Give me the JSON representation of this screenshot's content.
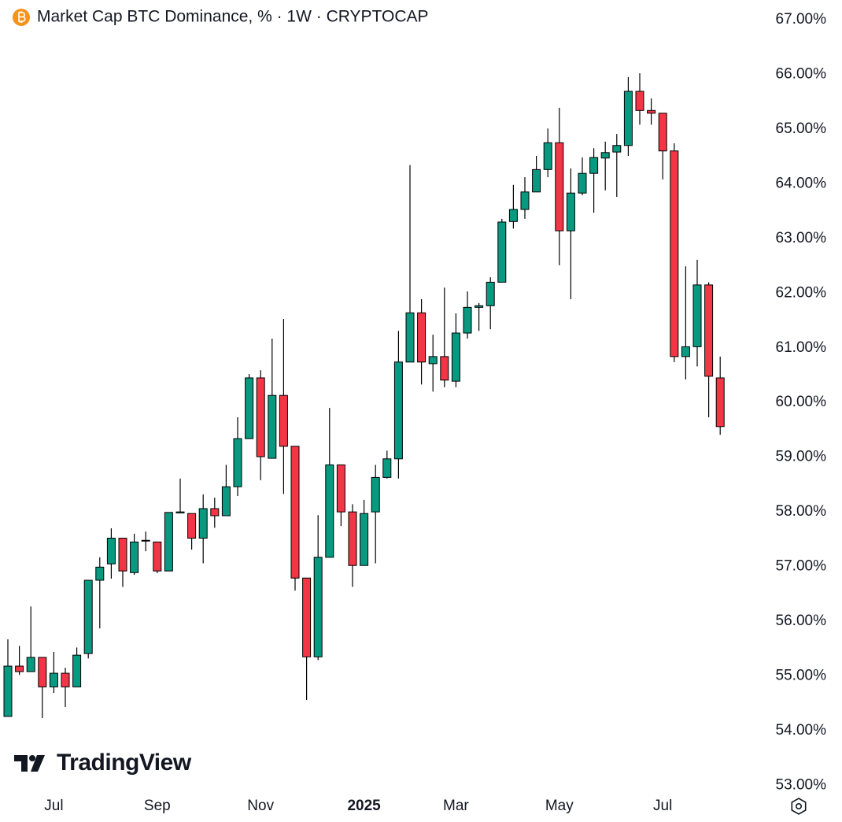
{
  "chart_data": {
    "type": "candlestick",
    "title": "Market Cap BTC Dominance, % · 1W · CRYPTOCAP",
    "watermark": "TradingView",
    "up_color": "#089981",
    "down_color": "#f23645",
    "outline_color": "#000000",
    "categories": [
      null,
      null,
      null,
      null,
      "Jul",
      null,
      null,
      null,
      null,
      null,
      null,
      null,
      null,
      "Sep",
      null,
      null,
      null,
      null,
      null,
      null,
      null,
      null,
      "Nov",
      null,
      null,
      null,
      null,
      null,
      null,
      null,
      null,
      "2025",
      null,
      null,
      null,
      null,
      null,
      null,
      null,
      "Mar",
      null,
      null,
      null,
      null,
      null,
      null,
      null,
      null,
      "May",
      null,
      null,
      null,
      null,
      null,
      null,
      null,
      null,
      "Jul",
      null,
      null,
      null,
      null,
      null
    ],
    "open": [
      54.26,
      55.18,
      55.08,
      55.34,
      54.8,
      55.05,
      54.8,
      55.41,
      56.75,
      57.05,
      57.52,
      56.89,
      57.47,
      57.45,
      56.92,
      57.98,
      57.97,
      57.52,
      58.06,
      57.93,
      58.46,
      59.34,
      60.45,
      58.98,
      60.13,
      59.2,
      56.79,
      55.35,
      57.17,
      58.86,
      58.0,
      57.02,
      58.0,
      58.63,
      58.97,
      60.74,
      61.64,
      60.71,
      60.84,
      60.39,
      61.27,
      61.74,
      61.77,
      62.2,
      63.31,
      63.53,
      63.85,
      64.26,
      64.75,
      63.14,
      63.83,
      64.19,
      64.47,
      64.58,
      64.7,
      65.69,
      65.34,
      65.29,
      64.6,
      60.84,
      61.02,
      62.15,
      60.45
    ],
    "high": [
      55.67,
      55.55,
      56.27,
      55.34,
      55.44,
      55.15,
      55.52,
      56.75,
      57.17,
      57.7,
      57.52,
      57.6,
      57.64,
      57.45,
      57.99,
      58.61,
      57.97,
      58.32,
      58.26,
      58.86,
      59.73,
      60.52,
      60.59,
      61.17,
      61.53,
      59.2,
      56.79,
      57.94,
      59.9,
      58.86,
      58.14,
      58.22,
      58.86,
      59.12,
      61.31,
      64.34,
      61.89,
      61.24,
      62.1,
      61.63,
      62.03,
      61.82,
      62.29,
      63.36,
      63.98,
      64.12,
      64.51,
      65.01,
      65.39,
      64.28,
      64.48,
      64.65,
      64.77,
      64.91,
      65.95,
      66.02,
      65.56,
      65.29,
      64.74,
      62.49,
      62.61,
      62.2,
      60.84
    ],
    "low": [
      54.26,
      55.02,
      55.08,
      54.23,
      54.69,
      54.43,
      54.8,
      55.32,
      55.87,
      56.78,
      56.63,
      56.85,
      57.28,
      56.88,
      56.92,
      57.98,
      57.31,
      57.06,
      57.71,
      57.93,
      58.29,
      59.34,
      58.58,
      58.98,
      58.33,
      56.56,
      54.56,
      55.29,
      57.17,
      57.74,
      56.63,
      57.02,
      57.06,
      58.61,
      58.61,
      60.74,
      60.33,
      60.2,
      60.28,
      60.28,
      61.17,
      61.31,
      61.34,
      62.2,
      63.18,
      63.36,
      63.85,
      64.12,
      62.51,
      61.89,
      63.79,
      63.47,
      63.88,
      63.76,
      64.51,
      65.08,
      65.08,
      64.08,
      60.74,
      60.42,
      60.66,
      59.73,
      59.41
    ],
    "close": [
      55.18,
      55.08,
      55.34,
      54.8,
      55.05,
      54.8,
      55.38,
      56.75,
      56.99,
      57.52,
      56.92,
      57.45,
      57.48,
      56.92,
      57.99,
      58.0,
      57.52,
      58.06,
      57.93,
      58.46,
      59.34,
      60.45,
      59.01,
      60.13,
      59.2,
      56.79,
      55.35,
      57.17,
      58.86,
      58.0,
      57.02,
      57.97,
      58.63,
      58.97,
      60.74,
      61.64,
      60.74,
      60.84,
      60.41,
      61.27,
      61.74,
      61.77,
      62.2,
      63.3,
      63.53,
      63.85,
      64.26,
      64.75,
      63.14,
      63.83,
      64.19,
      64.48,
      64.57,
      64.7,
      65.69,
      65.34,
      65.29,
      64.6,
      60.84,
      61.02,
      62.15,
      60.48,
      59.56
    ],
    "ylim": [
      52.92,
      67.36
    ],
    "yticks": [
      {
        "value": 67,
        "label": "67.00%"
      },
      {
        "value": 66,
        "label": "66.00%"
      },
      {
        "value": 65,
        "label": "65.00%"
      },
      {
        "value": 64,
        "label": "64.00%"
      },
      {
        "value": 63,
        "label": "63.00%"
      },
      {
        "value": 62,
        "label": "62.00%"
      },
      {
        "value": 61,
        "label": "61.00%"
      },
      {
        "value": 60,
        "label": "60.00%"
      },
      {
        "value": 59,
        "label": "59.00%"
      },
      {
        "value": 58,
        "label": "58.00%"
      },
      {
        "value": 57,
        "label": "57.00%"
      },
      {
        "value": 56,
        "label": "56.00%"
      },
      {
        "value": 55,
        "label": "55.00%"
      },
      {
        "value": 54,
        "label": "54.00%"
      },
      {
        "value": 53,
        "label": "53.00%"
      }
    ],
    "grid": false,
    "y_axis_side": "right"
  }
}
